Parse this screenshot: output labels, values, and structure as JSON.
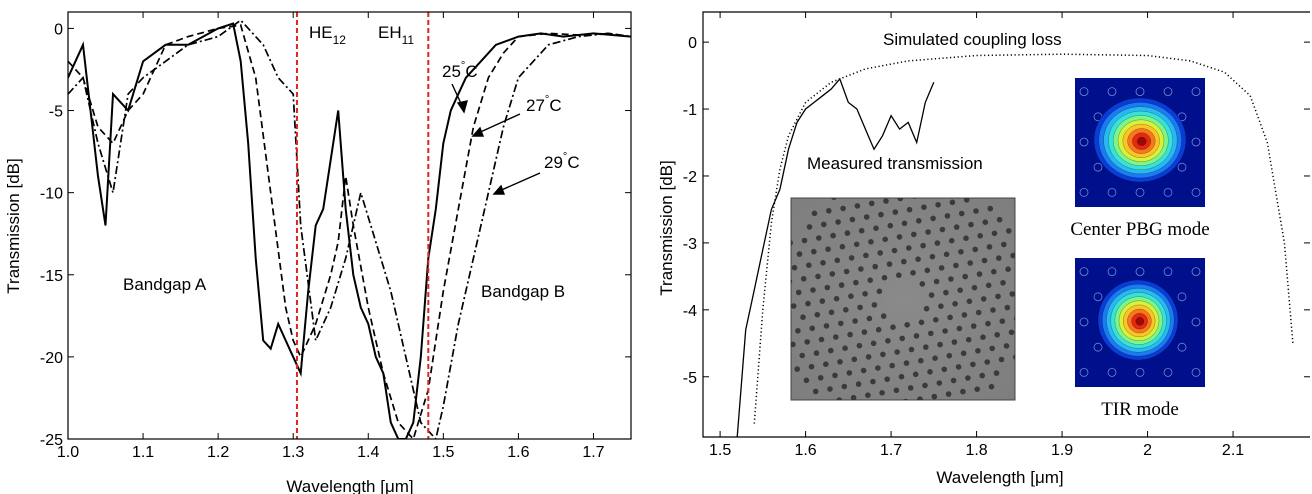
{
  "chart_data": [
    {
      "type": "line",
      "xlabel": "Wavelength [μm]",
      "ylabel": "Transmission [dB]",
      "xlim": [
        1.0,
        1.75
      ],
      "ylim": [
        -25,
        1
      ],
      "xticks": [
        "1.0",
        "1.1",
        "1.2",
        "1.3",
        "1.4",
        "1.5",
        "1.6",
        "1.7"
      ],
      "yticks": [
        "0",
        "-5",
        "-10",
        "-15",
        "-20",
        "-25"
      ],
      "grid": false,
      "series": [
        {
          "name": "25°C",
          "style": "solid",
          "color": "#000000",
          "x": [
            1.0,
            1.02,
            1.03,
            1.04,
            1.05,
            1.06,
            1.08,
            1.1,
            1.13,
            1.16,
            1.18,
            1.2,
            1.22,
            1.23,
            1.24,
            1.25,
            1.26,
            1.27,
            1.28,
            1.29,
            1.3,
            1.31,
            1.32,
            1.33,
            1.34,
            1.35,
            1.36,
            1.37,
            1.38,
            1.39,
            1.4,
            1.41,
            1.42,
            1.43,
            1.44,
            1.45,
            1.46,
            1.47,
            1.48,
            1.49,
            1.5,
            1.51,
            1.52,
            1.53,
            1.55,
            1.57,
            1.6,
            1.63,
            1.66,
            1.7,
            1.75
          ],
          "y": [
            -3,
            -1,
            -5,
            -9,
            -12,
            -4,
            -5,
            -2,
            -1,
            -1,
            -0.5,
            0,
            0.3,
            -2,
            -7,
            -14,
            -19,
            -19.5,
            -18,
            -19,
            -20,
            -21,
            -16,
            -12,
            -11,
            -8,
            -5,
            -11,
            -15,
            -17,
            -18,
            -20,
            -21,
            -24,
            -25,
            -25,
            -24,
            -20,
            -14,
            -11,
            -7,
            -5,
            -4,
            -3,
            -2,
            -1,
            -0.5,
            -0.3,
            -0.5,
            -0.3,
            -0.5
          ]
        },
        {
          "name": "27°C",
          "style": "dashed",
          "color": "#000000",
          "x": [
            1.0,
            1.02,
            1.04,
            1.06,
            1.08,
            1.1,
            1.13,
            1.16,
            1.2,
            1.23,
            1.25,
            1.27,
            1.29,
            1.3,
            1.31,
            1.33,
            1.35,
            1.36,
            1.37,
            1.38,
            1.4,
            1.42,
            1.44,
            1.46,
            1.48,
            1.5,
            1.52,
            1.54,
            1.56,
            1.58,
            1.6,
            1.64,
            1.68,
            1.72,
            1.75
          ],
          "y": [
            -2,
            -3,
            -6,
            -7,
            -5,
            -4,
            -1,
            -0.5,
            0,
            0.2,
            -3,
            -10,
            -17,
            -19,
            -20,
            -18,
            -15,
            -13,
            -9,
            -12,
            -17,
            -21,
            -24,
            -25,
            -22,
            -16,
            -11,
            -6,
            -3,
            -1.5,
            -0.5,
            -0.3,
            -0.4,
            -0.3,
            -0.5
          ]
        },
        {
          "name": "29°C",
          "style": "dashdot",
          "color": "#000000",
          "x": [
            1.0,
            1.02,
            1.04,
            1.06,
            1.08,
            1.1,
            1.13,
            1.16,
            1.2,
            1.23,
            1.26,
            1.28,
            1.3,
            1.31,
            1.33,
            1.35,
            1.37,
            1.39,
            1.41,
            1.43,
            1.45,
            1.47,
            1.49,
            1.5,
            1.52,
            1.54,
            1.56,
            1.58,
            1.6,
            1.64,
            1.68,
            1.72,
            1.75
          ],
          "y": [
            -4,
            -3,
            -7,
            -10,
            -4,
            -3,
            -2,
            -1,
            -0.5,
            0.5,
            -1,
            -3,
            -4,
            -12,
            -19,
            -17,
            -14,
            -10,
            -13,
            -16,
            -20,
            -24,
            -25,
            -23,
            -18,
            -14,
            -10,
            -6,
            -3,
            -1,
            -0.5,
            -0.3,
            -0.5
          ]
        }
      ],
      "vertical_lines": [
        1.305,
        1.48
      ],
      "annotations": {
        "he_base": "HE",
        "he_sub": "12",
        "eh_base": "EH",
        "eh_sub": "11",
        "t25": "25",
        "t27": "27",
        "t29": "29",
        "deg": "°",
        "unit": "C",
        "bandgap_a": "Bandgap A",
        "bandgap_b": "Bandgap B"
      }
    },
    {
      "type": "line",
      "xlabel": "Wavelength [μm]",
      "ylabel": "Transmission [dB]",
      "xlim": [
        1.48,
        1.19
      ],
      "ylim": [
        -5.9,
        0.45
      ],
      "xticks": [
        "1.5",
        "1.6",
        "1.7",
        "1.8",
        "1.9",
        "2",
        "2.1"
      ],
      "yticks": [
        "0",
        "-1",
        "-2",
        "-3",
        "-4",
        "-5"
      ],
      "grid": false,
      "series": [
        {
          "name": "Simulated coupling loss",
          "style": "dotted",
          "color": "#000000",
          "x": [
            1.54,
            1.55,
            1.56,
            1.57,
            1.58,
            1.6,
            1.63,
            1.67,
            1.72,
            1.8,
            1.9,
            2.0,
            2.05,
            2.09,
            2.12,
            2.14,
            2.16,
            2.17
          ],
          "y": [
            -5.7,
            -4.0,
            -2.7,
            -1.9,
            -1.4,
            -0.9,
            -0.6,
            -0.4,
            -0.28,
            -0.2,
            -0.18,
            -0.2,
            -0.28,
            -0.45,
            -0.8,
            -1.5,
            -3.0,
            -4.5
          ]
        },
        {
          "name": "Measured transmission",
          "style": "solid",
          "color": "#000000",
          "x": [
            1.52,
            1.53,
            1.54,
            1.55,
            1.56,
            1.57,
            1.58,
            1.59,
            1.6,
            1.61,
            1.62,
            1.63,
            1.64,
            1.65,
            1.66,
            1.67,
            1.68,
            1.69,
            1.7,
            1.71,
            1.72,
            1.73,
            1.74,
            1.75
          ],
          "y": [
            -5.9,
            -4.3,
            -3.7,
            -3.1,
            -2.5,
            -2.2,
            -1.6,
            -1.2,
            -1.0,
            -0.9,
            -0.8,
            -0.7,
            -0.55,
            -0.9,
            -1.0,
            -1.3,
            -1.6,
            -1.4,
            -1.1,
            -1.3,
            -1.2,
            -1.5,
            -0.9,
            -0.6
          ]
        }
      ],
      "annotations": {
        "simulated": "Simulated coupling loss",
        "measured": "Measured transmission",
        "center_mode": "Center PBG mode",
        "tir_mode": "TIR mode"
      }
    }
  ]
}
